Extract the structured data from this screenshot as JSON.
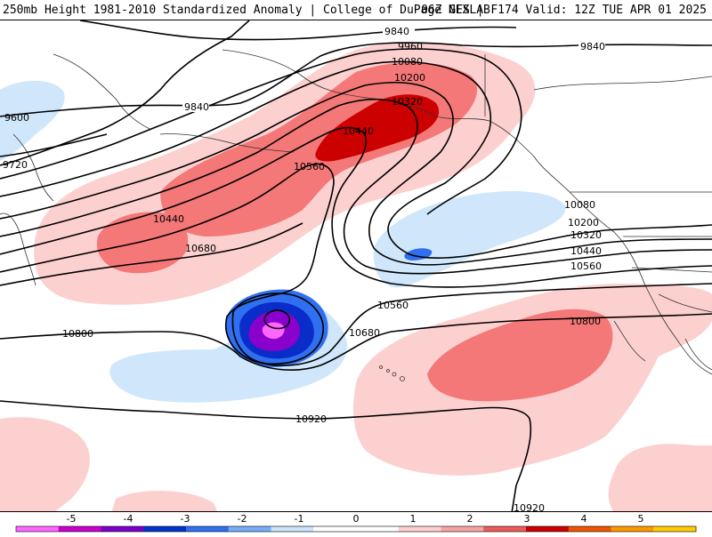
{
  "header": {
    "left_title": "250mb Height 1981-2010 Standardized Anomaly | College of DuPage NEXLAB",
    "right_title": "06Z GFS | F174 Valid: 12Z TUE APR 01 2025"
  },
  "contour_labels": {
    "c9840_top": "9840",
    "c9960": "9960",
    "c10080_top": "10080",
    "c10200_top": "10200",
    "c10320_top": "10320",
    "c10440_top": "10440",
    "c10560_top": "10560",
    "c9840_right": "9840",
    "c9840_left": "9840",
    "c9600": "9600",
    "c9720": "9720",
    "c10440_left": "10440",
    "c10680_left": "10680",
    "c10080_right": "10080",
    "c10200_right": "10200",
    "c10320_right": "10320",
    "c10440_right": "10440",
    "c10560_right": "10560",
    "c10560_mid": "10560",
    "c10680_mid": "10680",
    "c10800_left": "10800",
    "c10800_right": "10800",
    "c10920_mid": "10920",
    "c10920_bottom": "10920"
  },
  "colorbar": {
    "labels": [
      "-5",
      "-4",
      "-3",
      "-2",
      "-1",
      "0",
      "1",
      "2",
      "3",
      "4",
      "5"
    ],
    "colors": [
      "#ff66ff",
      "#cc00cc",
      "#7a00cc",
      "#0033cc",
      "#2f6ff0",
      "#77aef7",
      "#c9e4fb",
      "#ffffff",
      "#ffffff",
      "#ffd0d0",
      "#f7a4a4",
      "#ee5a5a",
      "#cc0000",
      "#ee5500",
      "#ff9900",
      "#ffcc00"
    ]
  },
  "colors": {
    "anomaly_pos_1": "#fdd0d0",
    "anomaly_pos_2": "#f57878",
    "anomaly_pos_3": "#cc0000",
    "anomaly_neg_1": "#cfe6fb",
    "anomaly_neg_2": "#2f6ff0",
    "anomaly_neg_3": "#0a2cc8",
    "anomaly_neg_4": "#8a00cc",
    "anomaly_neg_5": "#ff66ff"
  }
}
